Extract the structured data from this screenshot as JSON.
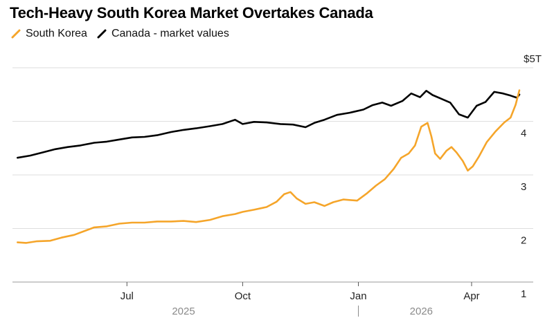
{
  "title": "Tech-Heavy South Korea Market Overtakes Canada",
  "legend": [
    {
      "name": "South Korea",
      "color": "#f5a52a"
    },
    {
      "name": "Canada - market values",
      "color": "#000000"
    }
  ],
  "chart_data": {
    "type": "line",
    "title": "Tech-Heavy South Korea Market Overtakes Canada",
    "unit_label": "$5T",
    "ylim": [
      1,
      5
    ],
    "yticks": [
      {
        "value": 5,
        "label": "$5T"
      },
      {
        "value": 4,
        "label": "4"
      },
      {
        "value": 3,
        "label": "3"
      },
      {
        "value": 2,
        "label": "2"
      },
      {
        "value": 1,
        "label": "1"
      }
    ],
    "xlim": [
      "2025-04-01",
      "2026-05-20"
    ],
    "xticks": [
      {
        "date": "2025-07-01",
        "label": "Jul"
      },
      {
        "date": "2025-10-01",
        "label": "Oct"
      },
      {
        "date": "2026-01-01",
        "label": "Jan"
      },
      {
        "date": "2026-04-01",
        "label": "Apr"
      }
    ],
    "year_labels": [
      {
        "date": "2025-08-15",
        "label": "2025"
      },
      {
        "date": "2026-02-20",
        "label": "2026"
      }
    ],
    "year_divider": "2026-01-01",
    "grid": true,
    "legend_position": "top-left",
    "series": [
      {
        "name": "South Korea",
        "color": "#f5a52a",
        "points": [
          [
            "2025-04-05",
            1.74
          ],
          [
            "2025-04-12",
            1.73
          ],
          [
            "2025-04-20",
            1.76
          ],
          [
            "2025-05-01",
            1.77
          ],
          [
            "2025-05-10",
            1.83
          ],
          [
            "2025-05-20",
            1.88
          ],
          [
            "2025-05-28",
            1.95
          ],
          [
            "2025-06-05",
            2.02
          ],
          [
            "2025-06-15",
            2.04
          ],
          [
            "2025-06-25",
            2.09
          ],
          [
            "2025-07-05",
            2.11
          ],
          [
            "2025-07-15",
            2.11
          ],
          [
            "2025-07-25",
            2.13
          ],
          [
            "2025-08-05",
            2.13
          ],
          [
            "2025-08-15",
            2.14
          ],
          [
            "2025-08-25",
            2.12
          ],
          [
            "2025-09-05",
            2.16
          ],
          [
            "2025-09-15",
            2.23
          ],
          [
            "2025-09-25",
            2.27
          ],
          [
            "2025-10-01",
            2.31
          ],
          [
            "2025-10-10",
            2.35
          ],
          [
            "2025-10-20",
            2.4
          ],
          [
            "2025-10-28",
            2.5
          ],
          [
            "2025-11-03",
            2.64
          ],
          [
            "2025-11-08",
            2.68
          ],
          [
            "2025-11-13",
            2.56
          ],
          [
            "2025-11-20",
            2.46
          ],
          [
            "2025-11-27",
            2.49
          ],
          [
            "2025-12-05",
            2.42
          ],
          [
            "2025-12-12",
            2.49
          ],
          [
            "2025-12-20",
            2.54
          ],
          [
            "2025-12-31",
            2.52
          ],
          [
            "2026-01-08",
            2.66
          ],
          [
            "2026-01-15",
            2.8
          ],
          [
            "2026-01-22",
            2.92
          ],
          [
            "2026-01-29",
            3.11
          ],
          [
            "2026-02-04",
            3.32
          ],
          [
            "2026-02-10",
            3.4
          ],
          [
            "2026-02-15",
            3.55
          ],
          [
            "2026-02-20",
            3.9
          ],
          [
            "2026-02-25",
            3.97
          ],
          [
            "2026-02-28",
            3.72
          ],
          [
            "2026-03-03",
            3.4
          ],
          [
            "2026-03-07",
            3.3
          ],
          [
            "2026-03-12",
            3.45
          ],
          [
            "2026-03-16",
            3.52
          ],
          [
            "2026-03-20",
            3.42
          ],
          [
            "2026-03-25",
            3.26
          ],
          [
            "2026-03-29",
            3.08
          ],
          [
            "2026-04-02",
            3.16
          ],
          [
            "2026-04-07",
            3.35
          ],
          [
            "2026-04-13",
            3.61
          ],
          [
            "2026-04-20",
            3.81
          ],
          [
            "2026-04-27",
            3.98
          ],
          [
            "2026-05-02",
            4.07
          ],
          [
            "2026-05-06",
            4.31
          ],
          [
            "2026-05-09",
            4.58
          ]
        ]
      },
      {
        "name": "Canada - market values",
        "color": "#000000",
        "points": [
          [
            "2025-04-05",
            3.32
          ],
          [
            "2025-04-15",
            3.36
          ],
          [
            "2025-04-25",
            3.42
          ],
          [
            "2025-05-05",
            3.48
          ],
          [
            "2025-05-15",
            3.52
          ],
          [
            "2025-05-25",
            3.55
          ],
          [
            "2025-06-05",
            3.6
          ],
          [
            "2025-06-15",
            3.62
          ],
          [
            "2025-06-25",
            3.66
          ],
          [
            "2025-07-05",
            3.7
          ],
          [
            "2025-07-15",
            3.71
          ],
          [
            "2025-07-25",
            3.74
          ],
          [
            "2025-08-05",
            3.8
          ],
          [
            "2025-08-15",
            3.84
          ],
          [
            "2025-08-25",
            3.87
          ],
          [
            "2025-09-05",
            3.91
          ],
          [
            "2025-09-15",
            3.95
          ],
          [
            "2025-09-25",
            4.03
          ],
          [
            "2025-10-01",
            3.95
          ],
          [
            "2025-10-10",
            3.99
          ],
          [
            "2025-10-20",
            3.98
          ],
          [
            "2025-10-31",
            3.95
          ],
          [
            "2025-11-10",
            3.94
          ],
          [
            "2025-11-20",
            3.89
          ],
          [
            "2025-11-27",
            3.97
          ],
          [
            "2025-12-05",
            4.03
          ],
          [
            "2025-12-15",
            4.12
          ],
          [
            "2025-12-25",
            4.16
          ],
          [
            "2026-01-05",
            4.22
          ],
          [
            "2026-01-12",
            4.3
          ],
          [
            "2026-01-20",
            4.35
          ],
          [
            "2026-01-27",
            4.29
          ],
          [
            "2026-02-05",
            4.38
          ],
          [
            "2026-02-12",
            4.52
          ],
          [
            "2026-02-19",
            4.45
          ],
          [
            "2026-02-24",
            4.57
          ],
          [
            "2026-03-01",
            4.49
          ],
          [
            "2026-03-08",
            4.42
          ],
          [
            "2026-03-15",
            4.35
          ],
          [
            "2026-03-22",
            4.13
          ],
          [
            "2026-03-29",
            4.07
          ],
          [
            "2026-04-05",
            4.29
          ],
          [
            "2026-04-12",
            4.36
          ],
          [
            "2026-04-19",
            4.55
          ],
          [
            "2026-04-26",
            4.52
          ],
          [
            "2026-05-02",
            4.48
          ],
          [
            "2026-05-07",
            4.44
          ],
          [
            "2026-05-09",
            4.5
          ]
        ]
      }
    ]
  }
}
